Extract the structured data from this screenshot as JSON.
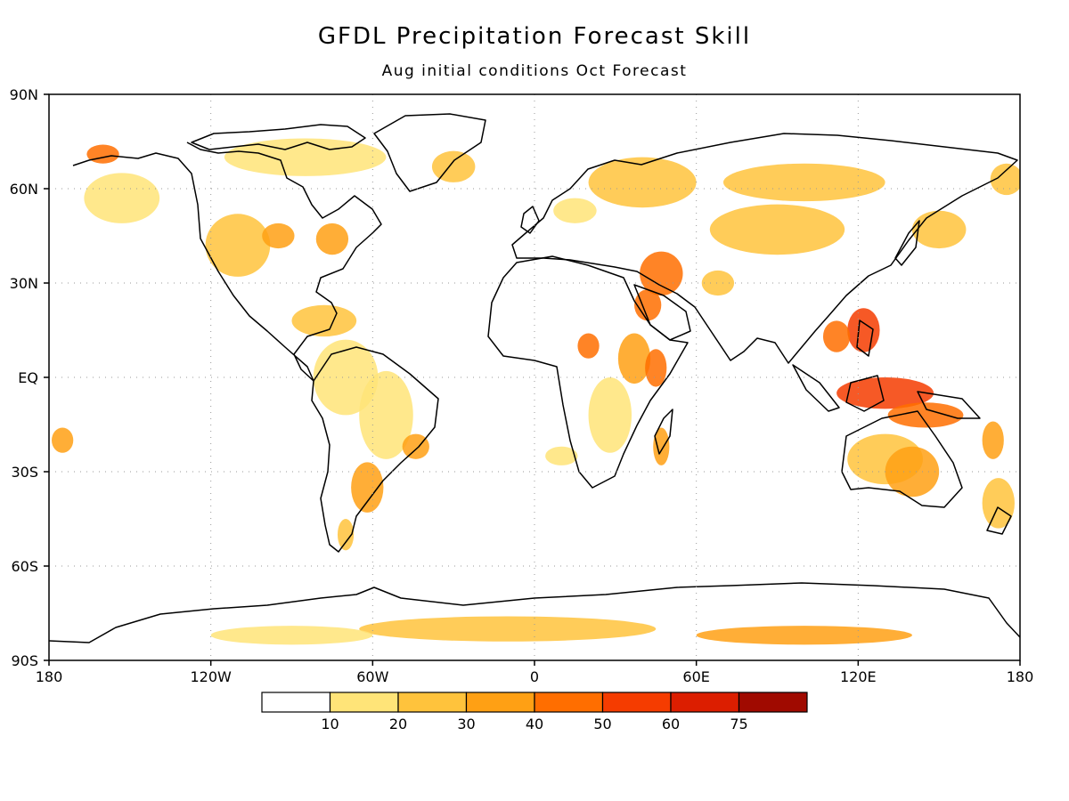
{
  "title": "GFDL Precipitation Forecast Skill",
  "subtitle": "Aug initial conditions  Oct Forecast",
  "map": {
    "projection": "equirectangular",
    "lon_range": [
      -180,
      180
    ],
    "lat_range": [
      -90,
      90
    ],
    "grid": "dotted",
    "lon_ticks": [
      {
        "lon": -180,
        "label": "180"
      },
      {
        "lon": -120,
        "label": "120W"
      },
      {
        "lon": -60,
        "label": "60W"
      },
      {
        "lon": 0,
        "label": "0"
      },
      {
        "lon": 60,
        "label": "60E"
      },
      {
        "lon": 120,
        "label": "120E"
      },
      {
        "lon": 180,
        "label": "180"
      }
    ],
    "lat_ticks": [
      {
        "lat": 90,
        "label": "90N"
      },
      {
        "lat": 60,
        "label": "60N"
      },
      {
        "lat": 30,
        "label": "30N"
      },
      {
        "lat": 0,
        "label": "EQ"
      },
      {
        "lat": -30,
        "label": "30S"
      },
      {
        "lat": -60,
        "label": "60S"
      },
      {
        "lat": -90,
        "label": "90S"
      }
    ]
  },
  "colorbar": {
    "labels": [
      "10",
      "20",
      "30",
      "40",
      "50",
      "60",
      "75"
    ],
    "colors": [
      "#ffffff",
      "#ffe478",
      "#ffc33c",
      "#ffa014",
      "#ff6e00",
      "#f53c00",
      "#dc1e00",
      "#a00a00"
    ]
  },
  "skill_regions": [
    {
      "lon": -153,
      "lat": 57,
      "rx": 14,
      "ry": 8,
      "level": 1
    },
    {
      "lon": -160,
      "lat": 71,
      "rx": 6,
      "ry": 3,
      "level": 4
    },
    {
      "lon": -110,
      "lat": 42,
      "rx": 12,
      "ry": 10,
      "level": 2
    },
    {
      "lon": -95,
      "lat": 45,
      "rx": 6,
      "ry": 4,
      "level": 3
    },
    {
      "lon": -75,
      "lat": 44,
      "rx": 6,
      "ry": 5,
      "level": 3
    },
    {
      "lon": -85,
      "lat": 70,
      "rx": 30,
      "ry": 6,
      "level": 1
    },
    {
      "lon": -30,
      "lat": 67,
      "rx": 8,
      "ry": 5,
      "level": 2
    },
    {
      "lon": -78,
      "lat": 18,
      "rx": 12,
      "ry": 5,
      "level": 2
    },
    {
      "lon": -70,
      "lat": 0,
      "rx": 12,
      "ry": 12,
      "level": 1
    },
    {
      "lon": -55,
      "lat": -12,
      "rx": 10,
      "ry": 14,
      "level": 1
    },
    {
      "lon": -62,
      "lat": -35,
      "rx": 6,
      "ry": 8,
      "level": 3
    },
    {
      "lon": -70,
      "lat": -50,
      "rx": 3,
      "ry": 5,
      "level": 2
    },
    {
      "lon": -44,
      "lat": -22,
      "rx": 5,
      "ry": 4,
      "level": 3
    },
    {
      "lon": -175,
      "lat": -20,
      "rx": 4,
      "ry": 4,
      "level": 3
    },
    {
      "lon": 15,
      "lat": 53,
      "rx": 8,
      "ry": 4,
      "level": 1
    },
    {
      "lon": 40,
      "lat": 62,
      "rx": 20,
      "ry": 8,
      "level": 2
    },
    {
      "lon": 90,
      "lat": 47,
      "rx": 25,
      "ry": 8,
      "level": 2
    },
    {
      "lon": 47,
      "lat": 33,
      "rx": 8,
      "ry": 7,
      "level": 4
    },
    {
      "lon": 42,
      "lat": 23,
      "rx": 5,
      "ry": 5,
      "level": 4
    },
    {
      "lon": 68,
      "lat": 30,
      "rx": 6,
      "ry": 4,
      "level": 2
    },
    {
      "lon": 20,
      "lat": 10,
      "rx": 4,
      "ry": 4,
      "level": 4
    },
    {
      "lon": 37,
      "lat": 6,
      "rx": 6,
      "ry": 8,
      "level": 3
    },
    {
      "lon": 45,
      "lat": 3,
      "rx": 4,
      "ry": 6,
      "level": 4
    },
    {
      "lon": 28,
      "lat": -12,
      "rx": 8,
      "ry": 12,
      "level": 1
    },
    {
      "lon": 47,
      "lat": -22,
      "rx": 3,
      "ry": 6,
      "level": 3
    },
    {
      "lon": 10,
      "lat": -25,
      "rx": 6,
      "ry": 3,
      "level": 1
    },
    {
      "lon": 122,
      "lat": 15,
      "rx": 6,
      "ry": 7,
      "level": 5
    },
    {
      "lon": 112,
      "lat": 13,
      "rx": 5,
      "ry": 5,
      "level": 4
    },
    {
      "lon": 130,
      "lat": -5,
      "rx": 18,
      "ry": 5,
      "level": 5
    },
    {
      "lon": 145,
      "lat": -12,
      "rx": 14,
      "ry": 4,
      "level": 4
    },
    {
      "lon": 130,
      "lat": -26,
      "rx": 14,
      "ry": 8,
      "level": 2
    },
    {
      "lon": 140,
      "lat": -30,
      "rx": 10,
      "ry": 8,
      "level": 3
    },
    {
      "lon": 100,
      "lat": 62,
      "rx": 30,
      "ry": 6,
      "level": 2
    },
    {
      "lon": 150,
      "lat": 47,
      "rx": 10,
      "ry": 6,
      "level": 2
    },
    {
      "lon": 170,
      "lat": -20,
      "rx": 4,
      "ry": 6,
      "level": 3
    },
    {
      "lon": 172,
      "lat": -40,
      "rx": 6,
      "ry": 8,
      "level": 2
    },
    {
      "lon": 175,
      "lat": 63,
      "rx": 6,
      "ry": 5,
      "level": 2
    },
    {
      "lon": -10,
      "lat": -80,
      "rx": 55,
      "ry": 4,
      "level": 2
    },
    {
      "lon": 100,
      "lat": -82,
      "rx": 40,
      "ry": 3,
      "level": 3
    },
    {
      "lon": -90,
      "lat": -82,
      "rx": 30,
      "ry": 3,
      "level": 1
    }
  ]
}
